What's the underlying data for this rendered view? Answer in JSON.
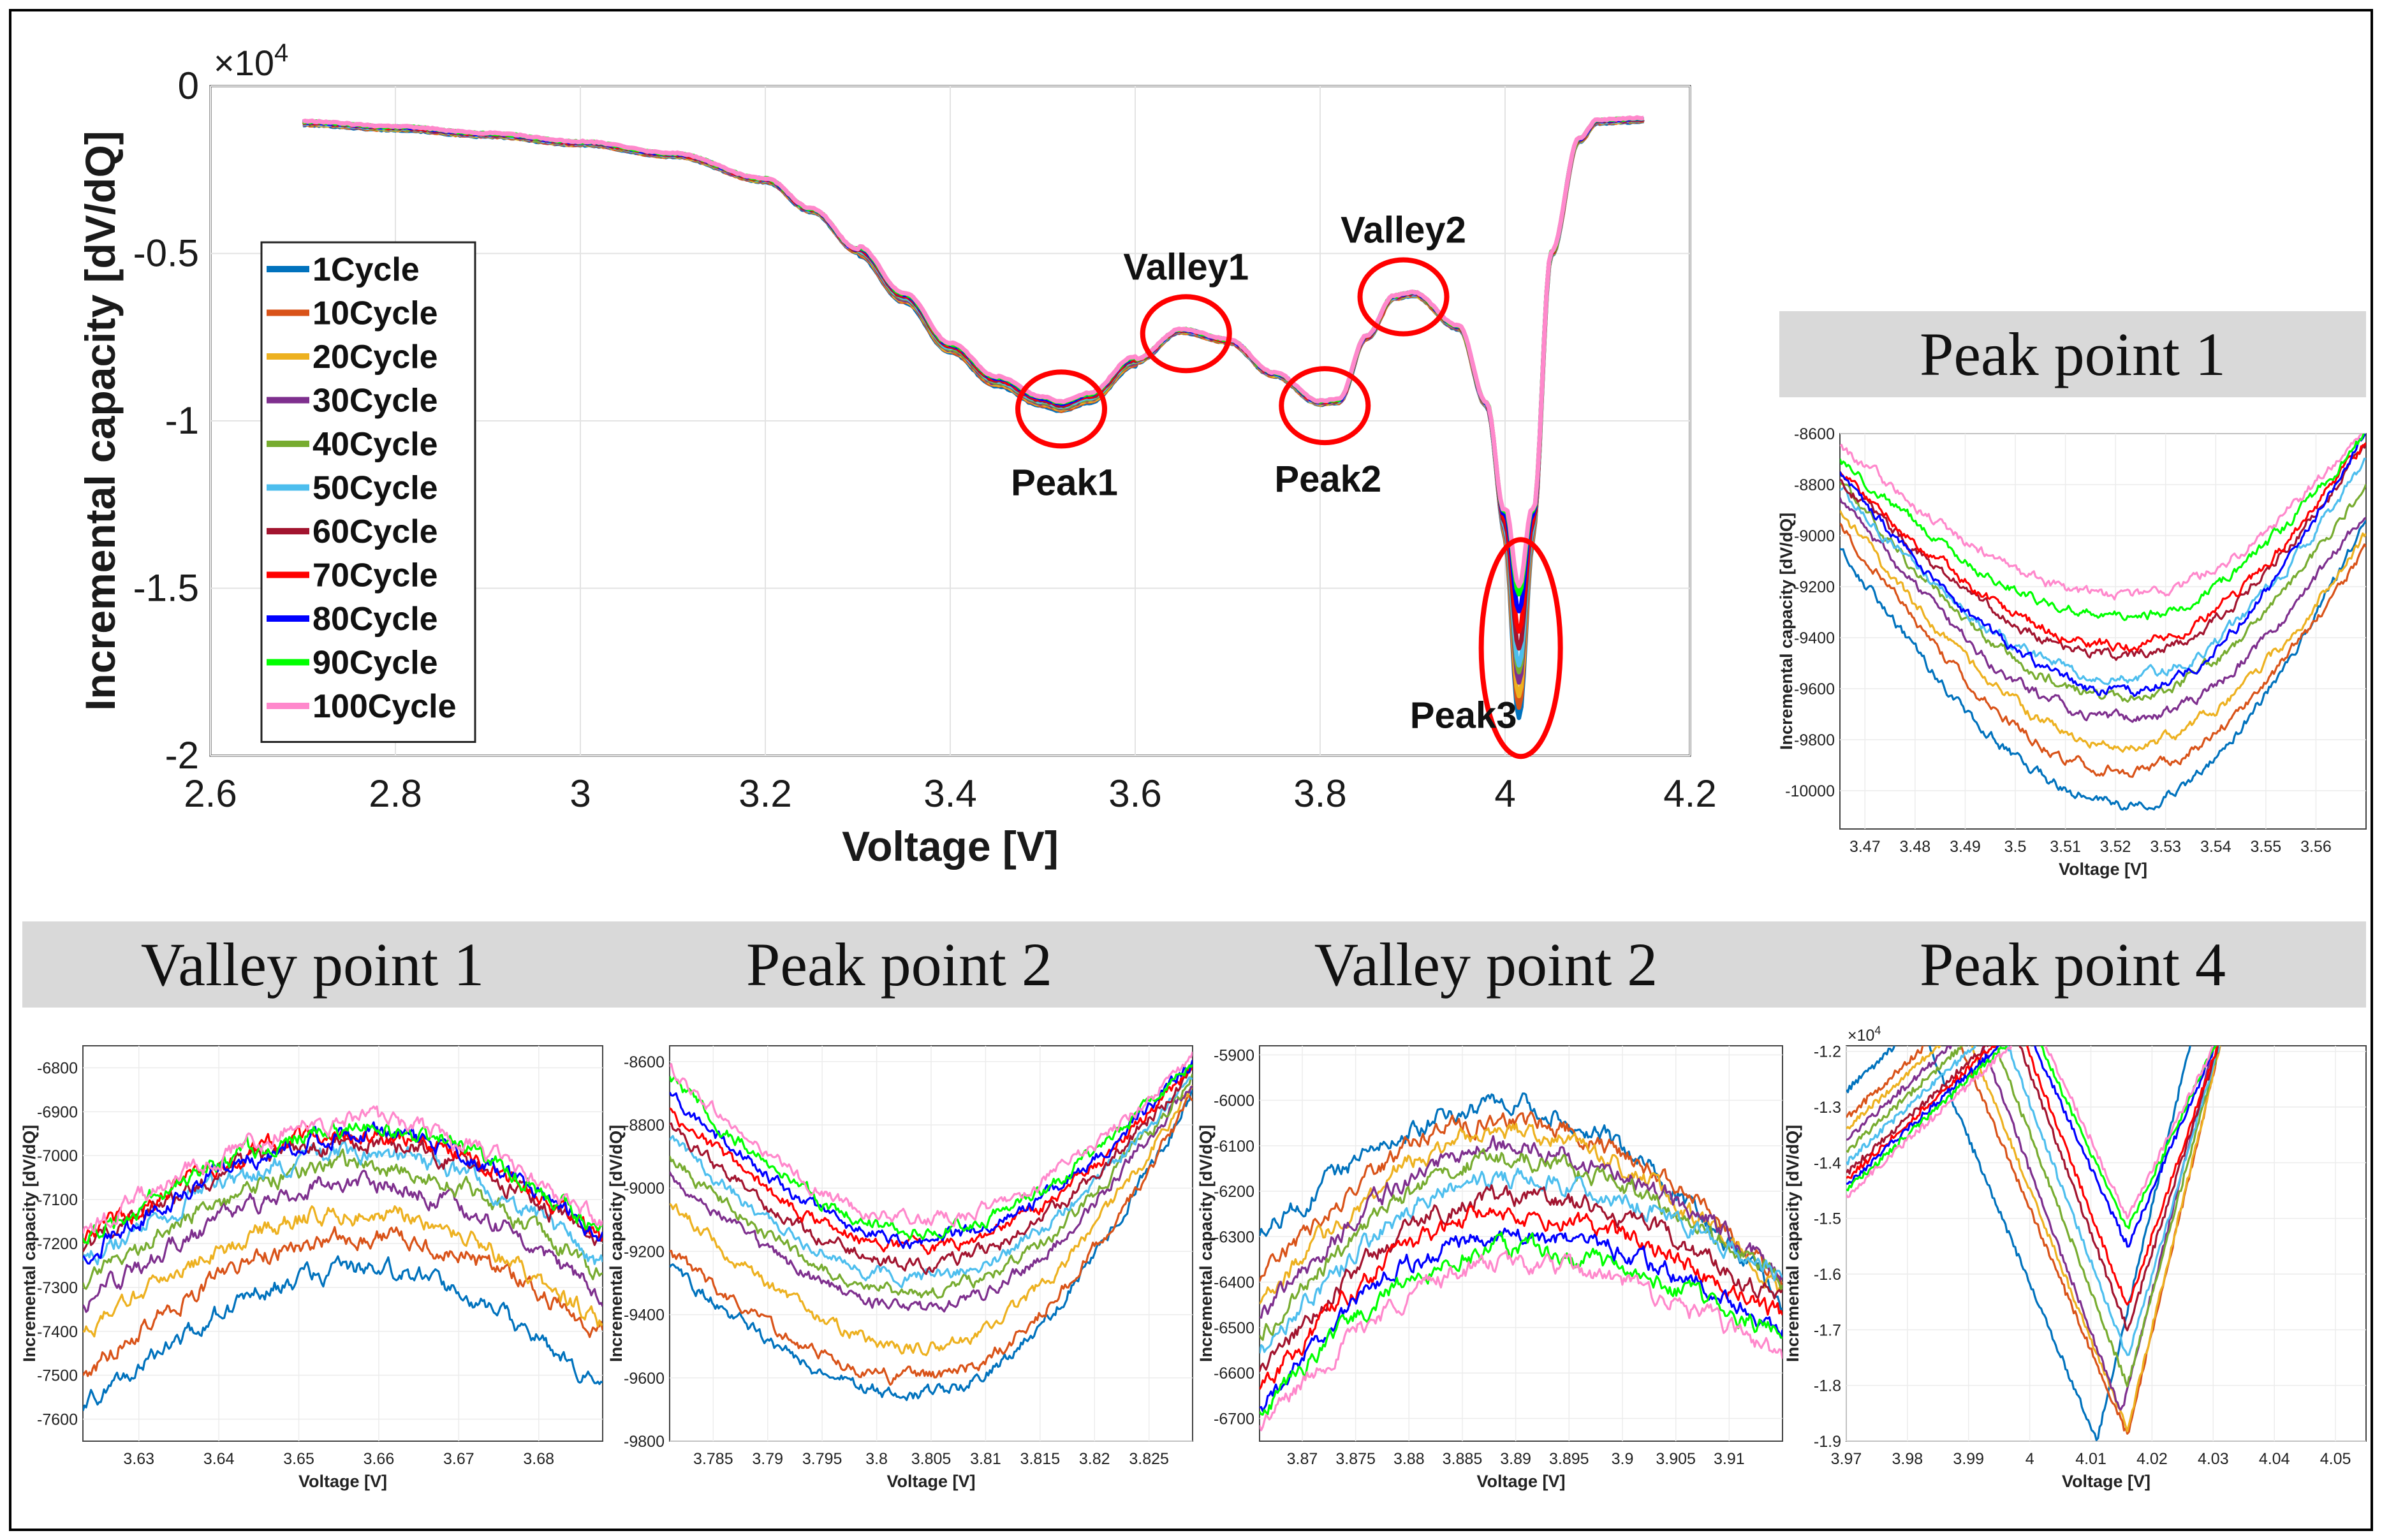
{
  "chart_data": [
    {
      "type": "line",
      "title": "",
      "xlabel": "Voltage [V]",
      "ylabel": "Incremental capacity [dV/dQ]",
      "y_exponent": "×10",
      "y_exponent_power": "4",
      "xlim": [
        2.6,
        4.2
      ],
      "ylim": [
        -2,
        0
      ],
      "xticks": [
        2.6,
        2.8,
        3.0,
        3.2,
        3.4,
        3.6,
        3.8,
        4.0,
        4.2
      ],
      "xtick_labels": [
        "2.6",
        "2.8",
        "3",
        "3.2",
        "3.4",
        "3.6",
        "3.8",
        "4",
        "4.2"
      ],
      "yticks": [
        0,
        -0.5,
        -1,
        -1.5,
        -2
      ],
      "ytick_labels": [
        "0",
        "-0.5",
        "-1",
        "-1.5",
        "-2"
      ],
      "grid": true,
      "legend_position": "left",
      "series_names": [
        "1Cycle",
        "10Cycle",
        "20Cycle",
        "30Cycle",
        "40Cycle",
        "50Cycle",
        "60Cycle",
        "70Cycle",
        "80Cycle",
        "90Cycle",
        "100Cycle"
      ],
      "series_colors": [
        "#0072bd",
        "#d95319",
        "#edb120",
        "#7e2f8e",
        "#77ac30",
        "#4dbeee",
        "#a2142f",
        "#ff0000",
        "#0000ff",
        "#00ff00",
        "#ff88cc"
      ],
      "base_curve": {
        "x": [
          2.7,
          2.8,
          2.9,
          3.0,
          3.1,
          3.2,
          3.25,
          3.3,
          3.35,
          3.4,
          3.45,
          3.5,
          3.52,
          3.55,
          3.6,
          3.65,
          3.7,
          3.75,
          3.8,
          3.82,
          3.85,
          3.88,
          3.9,
          3.95,
          3.98,
          4.0,
          4.015,
          4.03,
          4.05,
          4.08,
          4.1,
          4.15
        ],
        "y": [
          -1100,
          -1250,
          -1450,
          -1700,
          -2050,
          -2800,
          -3700,
          -4900,
          -6300,
          -7800,
          -8800,
          -9400,
          -9550,
          -9300,
          -8200,
          -7300,
          -7600,
          -8600,
          -9450,
          -9400,
          -7500,
          -6300,
          -6200,
          -7200,
          -9500,
          -13000,
          -16500,
          -13000,
          -5000,
          -1600,
          -1050,
          -1000
        ]
      },
      "deep_minimums": [
        -18800,
        -18500,
        -18200,
        -17800,
        -17500,
        -17300,
        -16800,
        -16300,
        -15700,
        -15200,
        -15000
      ],
      "annotations": [
        {
          "label": "Peak1",
          "x": 3.52,
          "y": -9550
        },
        {
          "label": "Valley1",
          "x": 3.655,
          "y": -7300
        },
        {
          "label": "Peak2",
          "x": 3.805,
          "y": -9450
        },
        {
          "label": "Valley2",
          "x": 3.89,
          "y": -6200
        },
        {
          "label": "Peak3",
          "x": 4.017,
          "y": -16500
        }
      ]
    },
    {
      "type": "line",
      "title": "Peak point 1",
      "xlabel": "Voltage [V]",
      "ylabel": "Incremental capacity [dV/dQ]",
      "xlim": [
        3.465,
        3.57
      ],
      "ylim": [
        -10150,
        -8600
      ],
      "xticks": [
        3.47,
        3.48,
        3.49,
        3.5,
        3.51,
        3.52,
        3.53,
        3.54,
        3.55,
        3.56
      ],
      "xtick_labels": [
        "3.47",
        "3.48",
        "3.49",
        "3.5",
        "3.51",
        "3.52",
        "3.53",
        "3.54",
        "3.55",
        "3.56"
      ],
      "yticks": [
        -8600,
        -8800,
        -9000,
        -9200,
        -9400,
        -9600,
        -9800,
        -10000
      ],
      "ytick_labels": [
        "-8600",
        "-8800",
        "-9000",
        "-9200",
        "-9400",
        "-9600",
        "-9800",
        "-10000"
      ],
      "grid": true,
      "shape": "valley",
      "center_x": 3.522,
      "start_values": [
        -9050,
        -8950,
        -8900,
        -8850,
        -8800,
        -8820,
        -8780,
        -8750,
        -8750,
        -8700,
        -8650
      ],
      "min_values": [
        -10050,
        -9920,
        -9820,
        -9720,
        -9630,
        -9560,
        -9470,
        -9430,
        -9610,
        -9320,
        -9240
      ],
      "end_values": [
        -8950,
        -9050,
        -9000,
        -8900,
        -8800,
        -8700,
        -8650,
        -8620,
        -8600,
        -8600,
        -8580
      ]
    },
    {
      "type": "line",
      "title": "Valley point 1",
      "xlabel": "Voltage [V]",
      "ylabel": "Incremental capacity [dV/dQ]",
      "xlim": [
        3.623,
        3.688
      ],
      "ylim": [
        -7650,
        -6750
      ],
      "xticks": [
        3.63,
        3.64,
        3.65,
        3.66,
        3.67,
        3.68
      ],
      "xtick_labels": [
        "3.63",
        "3.64",
        "3.65",
        "3.66",
        "3.67",
        "3.68"
      ],
      "yticks": [
        -6800,
        -6900,
        -7000,
        -7100,
        -7200,
        -7300,
        -7400,
        -7500,
        -7600
      ],
      "ytick_labels": [
        "-6800",
        "-6900",
        "-7000",
        "-7100",
        "-7200",
        "-7300",
        "-7400",
        "-7500",
        "-7600"
      ],
      "grid": true,
      "shape": "hill",
      "center_x": 3.658,
      "start_values": [
        -7580,
        -7500,
        -7400,
        -7340,
        -7290,
        -7240,
        -7220,
        -7200,
        -7230,
        -7190,
        -7180
      ],
      "min_values": [
        -7260,
        -7180,
        -7130,
        -7060,
        -7020,
        -6990,
        -6970,
        -6950,
        -6950,
        -6940,
        -6920
      ],
      "end_values": [
        -7520,
        -7400,
        -7380,
        -7320,
        -7280,
        -7250,
        -7200,
        -7190,
        -7180,
        -7170,
        -7160
      ]
    },
    {
      "type": "line",
      "title": "Peak point 2",
      "xlabel": "Voltage [V]",
      "ylabel": "Incremental capacity [dV/dQ]",
      "xlim": [
        3.781,
        3.829
      ],
      "ylim": [
        -9800,
        -8550
      ],
      "xticks": [
        3.785,
        3.79,
        3.795,
        3.8,
        3.805,
        3.81,
        3.815,
        3.82,
        3.825
      ],
      "xtick_labels": [
        "3.785",
        "3.79",
        "3.795",
        "3.8",
        "3.805",
        "3.81",
        "3.815",
        "3.82",
        "3.825"
      ],
      "yticks": [
        -8600,
        -8800,
        -9000,
        -9200,
        -9400,
        -9600,
        -9800
      ],
      "ytick_labels": [
        "-8600",
        "-8800",
        "-9000",
        "-9200",
        "-9400",
        "-9600",
        "-9800"
      ],
      "grid": true,
      "shape": "valley",
      "center_x": 3.804,
      "start_values": [
        -9250,
        -9200,
        -9050,
        -8950,
        -8900,
        -8850,
        -8800,
        -8750,
        -8700,
        -8650,
        -8620
      ],
      "min_values": [
        -9650,
        -9600,
        -9500,
        -9380,
        -9330,
        -9280,
        -9240,
        -9190,
        -9160,
        -9130,
        -9100
      ],
      "end_values": [
        -8700,
        -8720,
        -8680,
        -8660,
        -8650,
        -8640,
        -8630,
        -8620,
        -8610,
        -8600,
        -8590
      ]
    },
    {
      "type": "line",
      "title": "Valley point 2",
      "xlabel": "Voltage [V]",
      "ylabel": "Incremental capacity [dV/dQ]",
      "xlim": [
        3.866,
        3.915
      ],
      "ylim": [
        -6750,
        -5880
      ],
      "xticks": [
        3.87,
        3.875,
        3.88,
        3.885,
        3.89,
        3.895,
        3.9,
        3.905,
        3.91
      ],
      "xtick_labels": [
        "3.87",
        "3.875",
        "3.88",
        "3.885",
        "3.89",
        "3.895",
        "3.9",
        "3.905",
        "3.91"
      ],
      "yticks": [
        -5900,
        -6000,
        -6100,
        -6200,
        -6300,
        -6400,
        -6500,
        -6600,
        -6700
      ],
      "ytick_labels": [
        "-5900",
        "-6000",
        "-6100",
        "-6200",
        "-6300",
        "-6400",
        "-6500",
        "-6600",
        "-6700"
      ],
      "grid": true,
      "shape": "hill",
      "center_x": 3.889,
      "start_values": [
        -6300,
        -6400,
        -6450,
        -6480,
        -6520,
        -6560,
        -6600,
        -6640,
        -6680,
        -6690,
        -6720
      ],
      "min_values": [
        -6010,
        -6040,
        -6070,
        -6100,
        -6130,
        -6170,
        -6210,
        -6250,
        -6290,
        -6330,
        -6360
      ],
      "end_values": [
        -6450,
        -6400,
        -6420,
        -6380,
        -6400,
        -6380,
        -6440,
        -6480,
        -6500,
        -6520,
        -6560
      ]
    },
    {
      "type": "line",
      "title": "Peak point 4",
      "xlabel": "Voltage [V]",
      "ylabel": "Incremental capacity [dV/dQ]",
      "y_exponent": "×10",
      "y_exponent_power": "4",
      "xlim": [
        3.97,
        4.055
      ],
      "ylim": [
        -1.9,
        -1.19
      ],
      "xticks": [
        3.97,
        3.98,
        3.99,
        4.0,
        4.01,
        4.02,
        4.03,
        4.04,
        4.05
      ],
      "xtick_labels": [
        "3.97",
        "3.98",
        "3.99",
        "4",
        "4.01",
        "4.02",
        "4.03",
        "4.04",
        "4.05"
      ],
      "yticks": [
        -1.2,
        -1.3,
        -1.4,
        -1.5,
        -1.6,
        -1.7,
        -1.8,
        -1.9
      ],
      "ytick_labels": [
        "-1.2",
        "-1.3",
        "-1.4",
        "-1.5",
        "-1.6",
        "-1.7",
        "-1.8",
        "-1.9"
      ],
      "grid": true,
      "shape": "sharp-valley",
      "center_x": 4.016,
      "start_x": [
        3.982,
        3.987,
        3.989,
        3.991,
        3.993,
        3.995,
        3.997,
        3.998,
        3.999,
        4.0,
        4.001
      ],
      "min_values": [
        -1.9,
        -1.89,
        -1.88,
        -1.85,
        -1.8,
        -1.75,
        -1.7,
        -1.66,
        -1.55,
        -1.52,
        -1.5
      ],
      "min_x": [
        4.011,
        4.016,
        4.016,
        4.015,
        4.016,
        4.016,
        4.016,
        4.016,
        4.016,
        4.016,
        4.016
      ]
    }
  ]
}
